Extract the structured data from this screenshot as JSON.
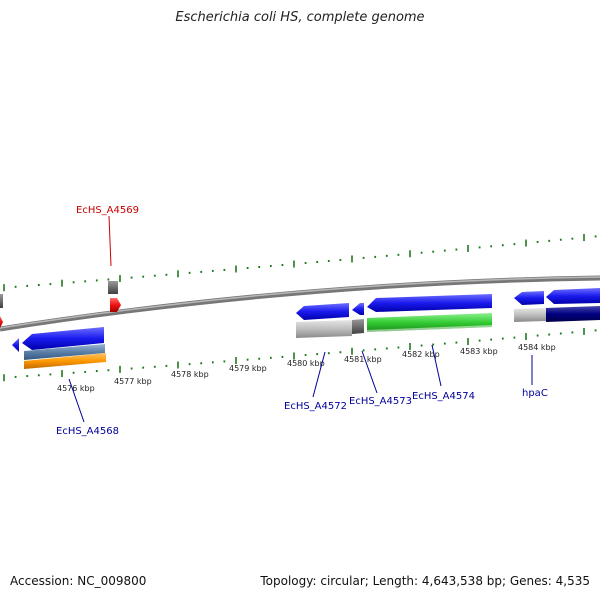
{
  "title": "Escherichia coli HS, complete genome",
  "footer": {
    "accession": "Accession: NC_009800",
    "topology": "Topology: circular; Length: 4,643,538 bp; Genes: 4,535"
  },
  "scale_labels": [
    "4576 kbp",
    "4577 kbp",
    "4578 kbp",
    "4579 kbp",
    "4580 kbp",
    "4581 kbp",
    "4582 kbp",
    "4583 kbp",
    "4584 kbp"
  ],
  "genes": [
    {
      "label": "EcHS_A4569",
      "color": "#cc0000"
    },
    {
      "label": "EcHS_A4568",
      "color": "#000099"
    },
    {
      "label": "EcHS_A4572",
      "color": "#000099"
    },
    {
      "label": "EcHS_A4573",
      "color": "#000099"
    },
    {
      "label": "EcHS_A4574",
      "color": "#000099"
    },
    {
      "label": "hpaC",
      "color": "#000099"
    }
  ],
  "colors": {
    "backbone": "#888888",
    "tick": "#1f7a1f",
    "gene_blue": "#1a1aee",
    "gene_grey": "#bdbdbd",
    "gene_green": "#33cc33",
    "gene_orange": "#ff9900",
    "gene_steel": "#5b7fa6",
    "gene_navy": "#000080",
    "gene_red": "#ee1111"
  }
}
